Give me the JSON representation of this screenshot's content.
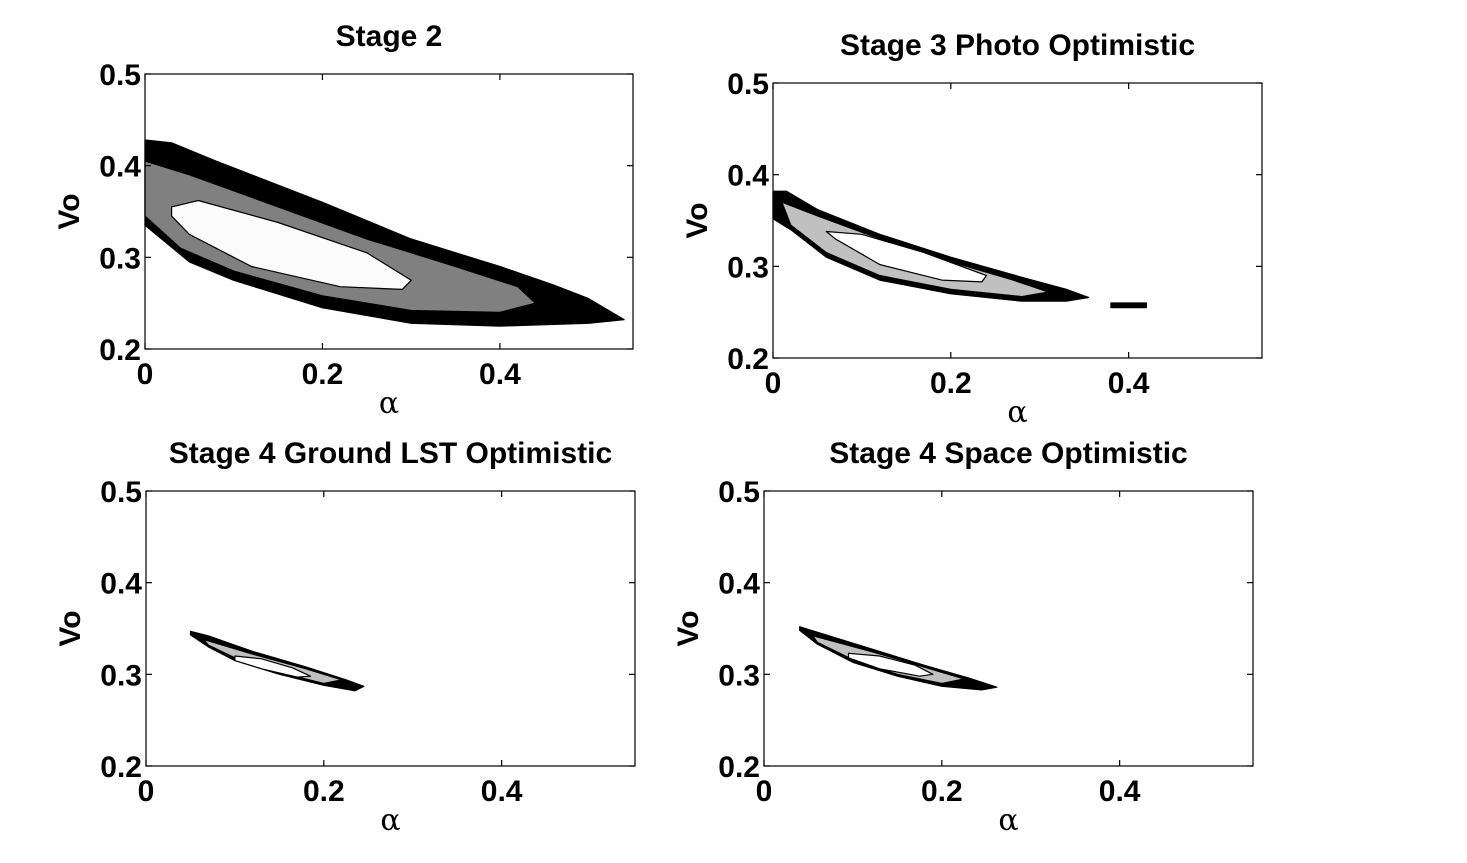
{
  "chart_data": [
    {
      "type": "contour",
      "title": "Stage 2",
      "xlabel": "α",
      "ylabel": "Vo",
      "xlim": [
        0,
        0.55
      ],
      "ylim": [
        0.2,
        0.5
      ],
      "xticks": [
        "0",
        "0.2",
        "0.4"
      ],
      "yticks": [
        "0.2",
        "0.3",
        "0.4",
        "0.5"
      ],
      "levels": [
        {
          "name": "outer",
          "color": "#000000",
          "polygon": [
            [
              0,
              0.428
            ],
            [
              0.03,
              0.425
            ],
            [
              0.08,
              0.405
            ],
            [
              0.2,
              0.36
            ],
            [
              0.3,
              0.32
            ],
            [
              0.4,
              0.29
            ],
            [
              0.46,
              0.27
            ],
            [
              0.5,
              0.255
            ],
            [
              0.54,
              0.232
            ],
            [
              0.5,
              0.228
            ],
            [
              0.4,
              0.225
            ],
            [
              0.3,
              0.228
            ],
            [
              0.2,
              0.245
            ],
            [
              0.1,
              0.275
            ],
            [
              0.05,
              0.295
            ],
            [
              0,
              0.335
            ]
          ]
        },
        {
          "name": "middle",
          "color": "#808080",
          "polygon": [
            [
              0,
              0.405
            ],
            [
              0.05,
              0.39
            ],
            [
              0.15,
              0.355
            ],
            [
              0.25,
              0.32
            ],
            [
              0.35,
              0.29
            ],
            [
              0.42,
              0.268
            ],
            [
              0.44,
              0.25
            ],
            [
              0.4,
              0.24
            ],
            [
              0.3,
              0.242
            ],
            [
              0.2,
              0.258
            ],
            [
              0.1,
              0.285
            ],
            [
              0.04,
              0.31
            ],
            [
              0,
              0.345
            ]
          ]
        },
        {
          "name": "inner",
          "color": "#fbfbfb",
          "polygon": [
            [
              0.03,
              0.355
            ],
            [
              0.06,
              0.362
            ],
            [
              0.15,
              0.338
            ],
            [
              0.25,
              0.305
            ],
            [
              0.3,
              0.275
            ],
            [
              0.29,
              0.265
            ],
            [
              0.22,
              0.268
            ],
            [
              0.12,
              0.29
            ],
            [
              0.05,
              0.325
            ],
            [
              0.03,
              0.345
            ]
          ]
        }
      ]
    },
    {
      "type": "contour",
      "title": "Stage 3 Photo Optimistic",
      "xlabel": "α",
      "ylabel": "Vo",
      "xlim": [
        0,
        0.55
      ],
      "ylim": [
        0.2,
        0.5
      ],
      "xticks": [
        "0",
        "0.2",
        "0.4"
      ],
      "yticks": [
        "0.2",
        "0.3",
        "0.4",
        "0.5"
      ],
      "levels": [
        {
          "name": "outer",
          "color": "#000000",
          "polygon": [
            [
              0,
              0.382
            ],
            [
              0.015,
              0.382
            ],
            [
              0.05,
              0.362
            ],
            [
              0.12,
              0.335
            ],
            [
              0.2,
              0.31
            ],
            [
              0.28,
              0.288
            ],
            [
              0.33,
              0.275
            ],
            [
              0.355,
              0.266
            ],
            [
              0.33,
              0.262
            ],
            [
              0.28,
              0.262
            ],
            [
              0.2,
              0.27
            ],
            [
              0.12,
              0.285
            ],
            [
              0.06,
              0.31
            ],
            [
              0.02,
              0.34
            ],
            [
              0,
              0.352
            ]
          ]
        },
        {
          "name": "middle",
          "color": "#c0c0c0",
          "polygon": [
            [
              0.01,
              0.37
            ],
            [
              0.05,
              0.355
            ],
            [
              0.12,
              0.33
            ],
            [
              0.2,
              0.305
            ],
            [
              0.27,
              0.285
            ],
            [
              0.31,
              0.272
            ],
            [
              0.28,
              0.267
            ],
            [
              0.2,
              0.275
            ],
            [
              0.12,
              0.29
            ],
            [
              0.06,
              0.315
            ],
            [
              0.02,
              0.345
            ]
          ]
        },
        {
          "name": "inner",
          "color": "#ffffff",
          "polygon": [
            [
              0.06,
              0.338
            ],
            [
              0.1,
              0.335
            ],
            [
              0.17,
              0.315
            ],
            [
              0.24,
              0.29
            ],
            [
              0.235,
              0.283
            ],
            [
              0.19,
              0.285
            ],
            [
              0.12,
              0.302
            ],
            [
              0.07,
              0.33
            ]
          ]
        },
        {
          "name": "island",
          "color": "#000000",
          "polygon": [
            [
              0.38,
              0.26
            ],
            [
              0.42,
              0.26
            ],
            [
              0.42,
              0.255
            ],
            [
              0.38,
              0.255
            ]
          ]
        }
      ]
    },
    {
      "type": "contour",
      "title": "Stage 4 Ground LST Optimistic",
      "xlabel": "α",
      "ylabel": "Vo",
      "xlim": [
        0,
        0.55
      ],
      "ylim": [
        0.2,
        0.5
      ],
      "xticks": [
        "0",
        "0.2",
        "0.4"
      ],
      "yticks": [
        "0.2",
        "0.3",
        "0.4",
        "0.5"
      ],
      "levels": [
        {
          "name": "outer",
          "color": "#000000",
          "polygon": [
            [
              0.05,
              0.347
            ],
            [
              0.07,
              0.342
            ],
            [
              0.12,
              0.325
            ],
            [
              0.18,
              0.308
            ],
            [
              0.225,
              0.294
            ],
            [
              0.245,
              0.287
            ],
            [
              0.235,
              0.282
            ],
            [
              0.2,
              0.288
            ],
            [
              0.15,
              0.3
            ],
            [
              0.1,
              0.315
            ],
            [
              0.07,
              0.33
            ],
            [
              0.05,
              0.343
            ]
          ]
        },
        {
          "name": "middle",
          "color": "#c0c0c0",
          "polygon": [
            [
              0.065,
              0.338
            ],
            [
              0.12,
              0.322
            ],
            [
              0.18,
              0.306
            ],
            [
              0.22,
              0.294
            ],
            [
              0.2,
              0.29
            ],
            [
              0.15,
              0.302
            ],
            [
              0.1,
              0.318
            ],
            [
              0.07,
              0.332
            ]
          ]
        },
        {
          "name": "inner",
          "color": "#ffffff",
          "polygon": [
            [
              0.1,
              0.32
            ],
            [
              0.13,
              0.317
            ],
            [
              0.165,
              0.307
            ],
            [
              0.185,
              0.298
            ],
            [
              0.17,
              0.297
            ],
            [
              0.13,
              0.306
            ],
            [
              0.1,
              0.315
            ]
          ]
        }
      ]
    },
    {
      "type": "contour",
      "title": "Stage 4 Space Optimistic",
      "xlabel": "α",
      "ylabel": "Vo",
      "xlim": [
        0,
        0.55
      ],
      "ylim": [
        0.2,
        0.5
      ],
      "xticks": [
        "0",
        "0.2",
        "0.4"
      ],
      "yticks": [
        "0.2",
        "0.3",
        "0.4",
        "0.5"
      ],
      "levels": [
        {
          "name": "outer",
          "color": "#000000",
          "polygon": [
            [
              0.04,
              0.352
            ],
            [
              0.06,
              0.346
            ],
            [
              0.12,
              0.328
            ],
            [
              0.18,
              0.31
            ],
            [
              0.23,
              0.296
            ],
            [
              0.262,
              0.286
            ],
            [
              0.245,
              0.283
            ],
            [
              0.2,
              0.287
            ],
            [
              0.15,
              0.298
            ],
            [
              0.1,
              0.313
            ],
            [
              0.06,
              0.333
            ],
            [
              0.04,
              0.348
            ]
          ]
        },
        {
          "name": "middle",
          "color": "#c0c0c0",
          "polygon": [
            [
              0.055,
              0.342
            ],
            [
              0.12,
              0.325
            ],
            [
              0.18,
              0.308
            ],
            [
              0.225,
              0.295
            ],
            [
              0.2,
              0.29
            ],
            [
              0.15,
              0.3
            ],
            [
              0.1,
              0.316
            ],
            [
              0.06,
              0.335
            ]
          ]
        },
        {
          "name": "inner",
          "color": "#ffffff",
          "polygon": [
            [
              0.095,
              0.323
            ],
            [
              0.13,
              0.32
            ],
            [
              0.17,
              0.31
            ],
            [
              0.19,
              0.3
            ],
            [
              0.175,
              0.298
            ],
            [
              0.13,
              0.306
            ],
            [
              0.095,
              0.318
            ]
          ]
        }
      ]
    }
  ]
}
